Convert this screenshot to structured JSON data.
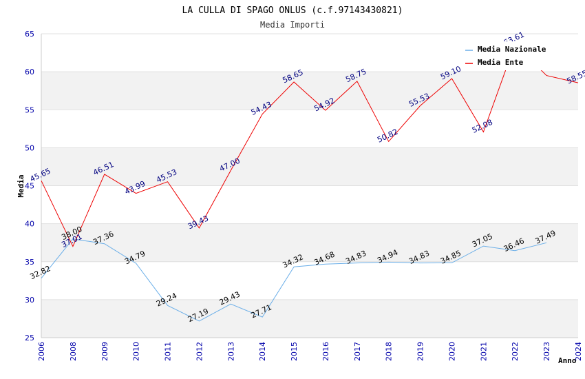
{
  "chart_data": {
    "type": "line",
    "title": "LA CULLA DI SPAGO ONLUS (c.f.97143430821)",
    "subtitle": "Media Importi",
    "xlabel": "Anno",
    "ylabel": "Media",
    "ylim": [
      25,
      65
    ],
    "yticks": [
      25,
      30,
      35,
      40,
      45,
      50,
      55,
      60,
      65
    ],
    "categories": [
      "2006",
      "2008",
      "2009",
      "2010",
      "2011",
      "2012",
      "2013",
      "2014",
      "2015",
      "2016",
      "2017",
      "2018",
      "2019",
      "2020",
      "2021",
      "2022",
      "2023",
      "2024"
    ],
    "series": [
      {
        "name": "Media Nazionale",
        "color": "#6aaee8",
        "values": [
          32.82,
          38.0,
          37.36,
          34.79,
          29.24,
          27.19,
          29.43,
          27.71,
          34.32,
          34.68,
          34.83,
          34.94,
          34.83,
          34.85,
          37.05,
          36.46,
          37.49,
          null
        ],
        "labels": [
          "32.82",
          "38.00",
          "37.36",
          "34.79",
          "29.24",
          "27.19",
          "29.43",
          "27.71",
          "34.32",
          "34.68",
          "34.83",
          "34.94",
          "34.83",
          "34.85",
          "37.05",
          "36.46",
          "37.49",
          ""
        ]
      },
      {
        "name": "Media Ente",
        "color": "#ee0000",
        "values": [
          45.65,
          37.01,
          46.51,
          43.99,
          45.53,
          39.43,
          47.0,
          54.43,
          58.65,
          54.92,
          58.75,
          50.82,
          55.53,
          59.1,
          52.08,
          63.61,
          59.5,
          58.55
        ],
        "labels": [
          "45.65",
          "37.01",
          "46.51",
          "43.99",
          "45.53",
          "39.43",
          "47.00",
          "54.43",
          "58.65",
          "54.92",
          "58.75",
          "50.82",
          "55.53",
          "59.10",
          "52.08",
          "63.61",
          "",
          "58.55"
        ]
      }
    ],
    "grid": true,
    "legend_position": "top-right"
  }
}
